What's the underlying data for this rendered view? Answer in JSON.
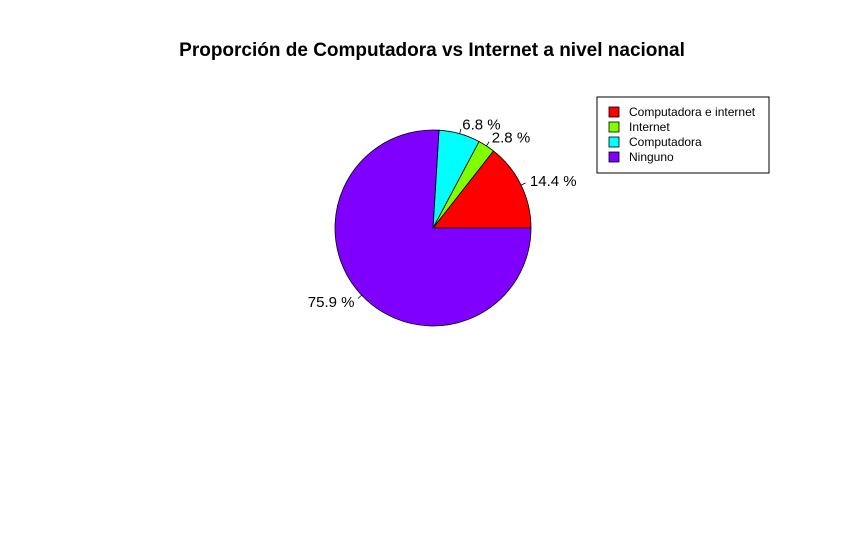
{
  "chart_data": {
    "type": "pie",
    "title": "Proporción de Computadora vs Internet a nivel nacional",
    "slices": [
      {
        "name": "Computadora e internet",
        "value": 14.4,
        "label": "14.4 %",
        "color": "#FF0000"
      },
      {
        "name": "Internet",
        "value": 2.8,
        "label": "2.8 %",
        "color": "#80FF00"
      },
      {
        "name": "Computadora",
        "value": 6.8,
        "label": "6.8 %",
        "color": "#00FFFF"
      },
      {
        "name": "Ninguno",
        "value": 75.9,
        "label": "75.9 %",
        "color": "#8000FF"
      }
    ],
    "legend_placement": "top-right"
  }
}
